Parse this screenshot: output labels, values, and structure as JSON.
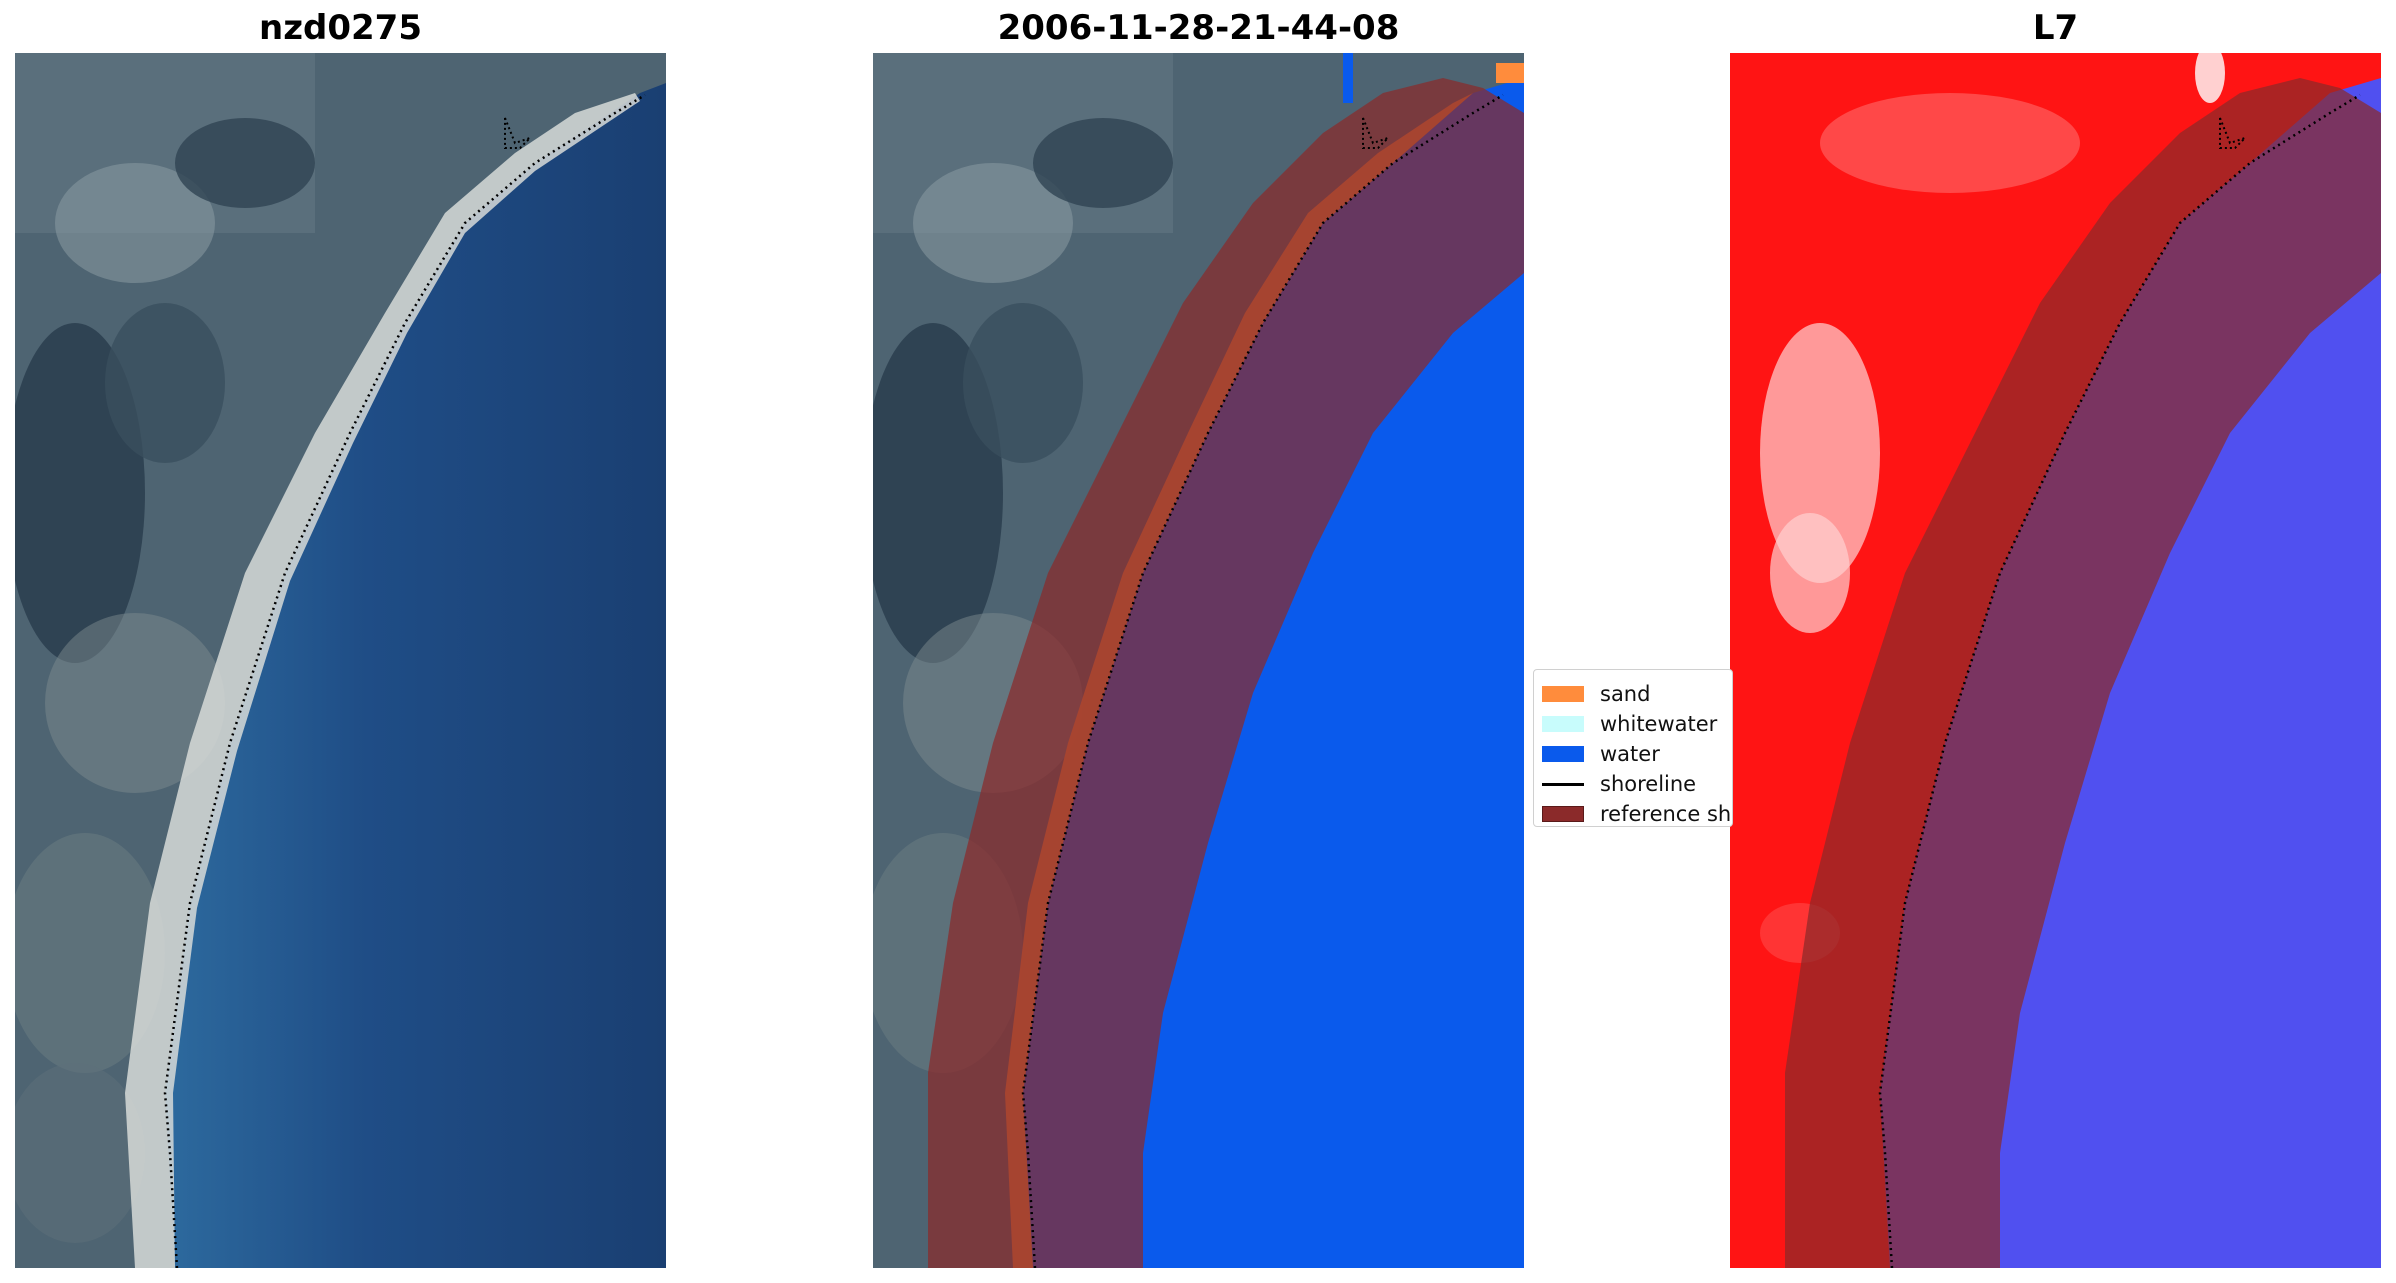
{
  "panels": [
    {
      "title": "nzd0275"
    },
    {
      "title": "2006-11-28-21-44-08"
    },
    {
      "title": "L7"
    }
  ],
  "legend": {
    "items": [
      {
        "label": "sand",
        "color": "#ff8c3c"
      },
      {
        "label": "whitewater",
        "color": "#c8fcfc"
      },
      {
        "label": "water",
        "color": "#0a5aec"
      },
      {
        "label": "shoreline",
        "color": "#000000"
      },
      {
        "label": "reference sh",
        "color": "#8b2a2a"
      }
    ]
  },
  "colors": {
    "land_dark": "#3e5262",
    "ocean": "#1c4478",
    "classified_water": "#0a5aec",
    "buffer": "#8b2a2a",
    "index_land": "#ff1414",
    "index_water": "#5050f0"
  }
}
